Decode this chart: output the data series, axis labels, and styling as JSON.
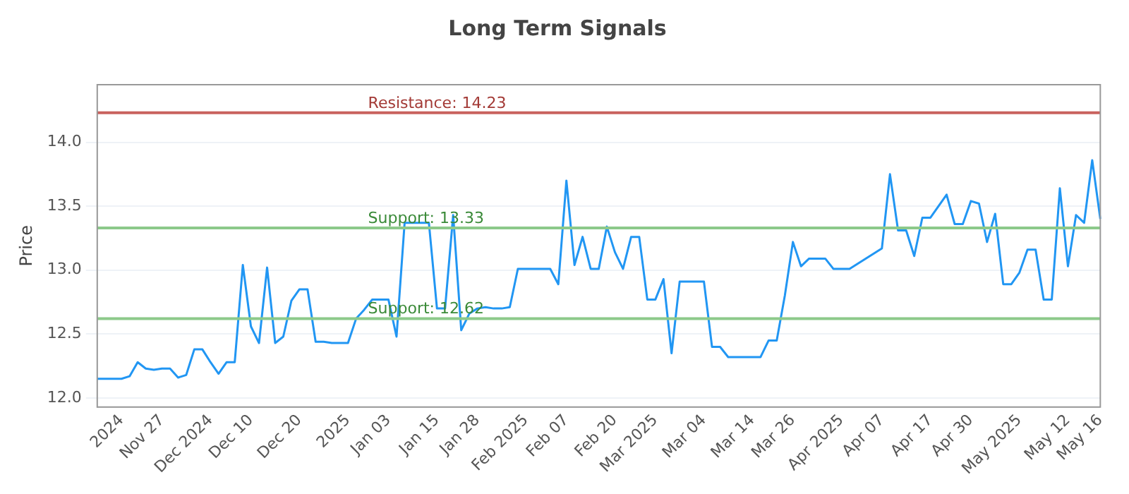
{
  "chart_data": {
    "type": "line",
    "title": "Long Term Signals",
    "ylabel": "Price",
    "categories": [
      null,
      null,
      null,
      "2024",
      null,
      null,
      null,
      null,
      "Nov 27",
      null,
      null,
      null,
      null,
      null,
      "Dec 2024",
      null,
      null,
      null,
      null,
      "Dec 10",
      null,
      null,
      null,
      null,
      null,
      "Dec 20",
      null,
      null,
      null,
      null,
      null,
      "2025",
      null,
      null,
      null,
      null,
      "Jan 03",
      null,
      null,
      null,
      null,
      null,
      "Jan 15",
      null,
      null,
      null,
      null,
      "Jan 28",
      null,
      null,
      null,
      null,
      null,
      "Feb 2025",
      null,
      null,
      null,
      null,
      "Feb 07",
      null,
      null,
      null,
      null,
      null,
      "Feb 20",
      null,
      null,
      null,
      null,
      "Mar 2025",
      null,
      null,
      null,
      null,
      null,
      "Mar 04",
      null,
      null,
      null,
      null,
      null,
      "Mar 14",
      null,
      null,
      null,
      null,
      "Mar 26",
      null,
      null,
      null,
      null,
      null,
      "Apr 2025",
      null,
      null,
      null,
      null,
      "Apr 07",
      null,
      null,
      null,
      null,
      null,
      "Apr 17",
      null,
      null,
      null,
      null,
      "Apr 30",
      null,
      null,
      null,
      null,
      null,
      "May 2025",
      null,
      null,
      null,
      null,
      null,
      "May 12",
      null,
      null,
      null,
      "May 16"
    ],
    "series": [
      {
        "color": "#2196f3",
        "values": [
          12.15,
          12.15,
          12.15,
          12.15,
          12.17,
          12.28,
          12.23,
          12.22,
          12.23,
          12.23,
          12.16,
          12.18,
          12.38,
          12.38,
          12.28,
          12.19,
          12.28,
          12.28,
          13.04,
          12.56,
          12.43,
          13.02,
          12.43,
          12.48,
          12.76,
          12.85,
          12.85,
          12.44,
          12.44,
          12.43,
          12.43,
          12.43,
          12.62,
          12.69,
          12.77,
          12.77,
          12.77,
          12.48,
          13.37,
          13.37,
          13.37,
          13.37,
          12.7,
          12.7,
          13.43,
          12.53,
          12.66,
          12.7,
          12.71,
          12.7,
          12.7,
          12.71,
          13.01,
          13.01,
          13.01,
          13.01,
          13.01,
          12.89,
          13.7,
          13.04,
          13.26,
          13.01,
          13.01,
          13.34,
          13.14,
          13.01,
          13.26,
          13.26,
          12.77,
          12.77,
          12.93,
          12.35,
          12.91,
          12.91,
          12.91,
          12.91,
          12.4,
          12.4,
          12.32,
          12.32,
          12.32,
          12.32,
          12.32,
          12.45,
          12.45,
          12.8,
          13.22,
          13.03,
          13.09,
          13.09,
          13.09,
          13.01,
          13.01,
          13.01,
          13.05,
          13.09,
          13.13,
          13.17,
          13.75,
          13.31,
          13.31,
          13.11,
          13.41,
          13.41,
          13.5,
          13.59,
          13.36,
          13.36,
          13.54,
          13.52,
          13.22,
          13.44,
          12.89,
          12.89,
          12.98,
          13.16,
          13.16,
          12.77,
          12.77,
          13.64,
          13.03,
          13.43,
          13.37,
          13.86,
          13.4
        ]
      }
    ],
    "ylim": [
      11.93,
      14.45
    ],
    "yticks": [
      {
        "value": 12,
        "label": "12.0"
      },
      {
        "value": 12.5,
        "label": "12.5"
      },
      {
        "value": 13,
        "label": "13.0"
      },
      {
        "value": 13.5,
        "label": "13.5"
      },
      {
        "value": 14,
        "label": "14.0"
      }
    ],
    "ref_lines": [
      {
        "axis": "y",
        "value": 14.23,
        "label": "Resistance: 14.23",
        "color": "#c9625e"
      },
      {
        "axis": "y",
        "value": 13.33,
        "label": "Support: 13.33",
        "color": "#8cc98a"
      },
      {
        "axis": "y",
        "value": 12.62,
        "label": "Support: 12.62",
        "color": "#8cc98a"
      }
    ],
    "grid": "y",
    "legend": false,
    "marker": "none",
    "line_style": "solid"
  }
}
